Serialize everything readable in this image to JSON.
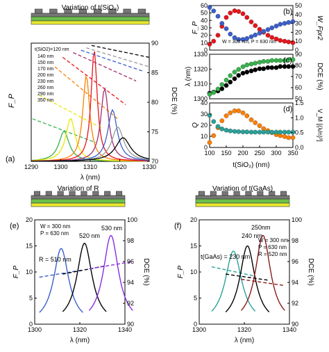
{
  "panels": {
    "a": {
      "label": "(a)",
      "schematic_title": "Variation of t(SiO₂)",
      "xlabel": "λ (nm)",
      "ylabel_left": "F_P",
      "ylabel_right": "DCE (%)",
      "x_ticks": [
        "1290",
        "1300",
        "1310",
        "1320",
        "1330"
      ],
      "y_right_ticks": [
        "70",
        "75",
        "80",
        "85",
        "90"
      ],
      "legend_title": "t(SiO2)=120 nm",
      "legend": [
        {
          "label": "140 nm",
          "color": "#37b24d"
        },
        {
          "label": "150 nm",
          "color": "#e8e800"
        },
        {
          "label": "170 nm",
          "color": "#ff7f00"
        },
        {
          "label": "200 nm",
          "color": "#e8141a"
        },
        {
          "label": "230 nm",
          "color": "#a52a6e"
        },
        {
          "label": "260 nm",
          "color": "#3a5fcd"
        },
        {
          "label": "290 nm",
          "color": "#999999"
        },
        {
          "label": "350 nm",
          "color": "#000000"
        }
      ]
    },
    "b": {
      "label": "(b)",
      "ylabel_left": "F_P",
      "ylabel_right": "W_Fpr2",
      "annotation": "W = 300 nm, P = 630 nm",
      "y_left_ticks": [
        "0",
        "10",
        "20",
        "30",
        "40",
        "50",
        "60"
      ],
      "y_right_ticks": [
        "0",
        "10",
        "20",
        "30",
        "40",
        "50"
      ]
    },
    "c": {
      "label": "(c)",
      "ylabel_left": "λ (nm)",
      "ylabel_right": "DCE (%)",
      "y_left_ticks": [
        "1300",
        "1310",
        "1320",
        "1330"
      ],
      "y_right_ticks": [
        "50",
        "60",
        "70",
        "80",
        "90"
      ]
    },
    "d": {
      "label": "(d)",
      "ylabel_left": "Q",
      "ylabel_right": "V_M [(λ/n)³]",
      "xlabel": "t(SiO₂) (nm)",
      "x_ticks": [
        "100",
        "150",
        "200",
        "250",
        "300",
        "350"
      ],
      "y_left_ticks": [
        "0",
        "10",
        "20",
        "30",
        "40"
      ],
      "y_right_ticks": [
        "0.0",
        "0.5",
        "1.0",
        "1.5"
      ]
    },
    "e": {
      "label": "(e)",
      "schematic_title": "Variation of R",
      "xlabel": "λ (nm)",
      "ylabel_left": "F_P",
      "ylabel_right": "DCE (%)",
      "x_ticks": [
        "1300",
        "1320",
        "1340"
      ],
      "y_left_ticks": [
        "0",
        "5",
        "10",
        "15",
        "20"
      ],
      "y_right_ticks": [
        "90",
        "92",
        "94",
        "96",
        "98",
        "100"
      ],
      "annot_w": "W = 300 nm",
      "annot_p": "P = 630 nm",
      "peak_labels": [
        "R = 510 nm",
        "520 nm",
        "530 nm"
      ]
    },
    "f": {
      "label": "(f)",
      "schematic_title": "Variation of t(GaAs)",
      "xlabel": "λ (nm)",
      "ylabel_left": "F_P",
      "ylabel_right": "DCE (%)",
      "x_ticks": [
        "1300",
        "1320",
        "1340"
      ],
      "y_left_ticks": [
        "0",
        "5",
        "10",
        "15",
        "20"
      ],
      "y_right_ticks": [
        "90",
        "92",
        "94",
        "96",
        "98",
        "100"
      ],
      "annot_w": "W = 300 nm",
      "annot_p": "P = 630 nm",
      "annot_r": "R = 520 nm",
      "peak_labels": [
        "t(GaAs) = 230 nm",
        "240 nm",
        "250nm"
      ]
    }
  },
  "chart_data": [
    {
      "panel": "a",
      "type": "line",
      "xlim": [
        1290,
        1335
      ],
      "ylim": [
        0,
        55
      ],
      "y2lim": [
        68,
        93
      ],
      "series": [
        {
          "name": "140 nm",
          "color": "#37b24d",
          "peak_x": 1302.5,
          "peak_y": 14,
          "width": 2.4,
          "dce_start": 77,
          "dce_end": 72
        },
        {
          "name": "150 nm",
          "color": "#e8e800",
          "peak_x": 1305,
          "peak_y": 20,
          "width": 2.2,
          "dce_start": 82,
          "dce_end": 75
        },
        {
          "name": "170 nm",
          "color": "#ff7f00",
          "peak_x": 1311,
          "peak_y": 40,
          "width": 1.6,
          "dce_start": 88,
          "dce_end": 77
        },
        {
          "name": "200 nm",
          "color": "#e8141a",
          "peak_x": 1314,
          "peak_y": 52,
          "width": 1.4,
          "dce_start": 90,
          "dce_end": 80
        },
        {
          "name": "230 nm",
          "color": "#a52a6e",
          "peak_x": 1318,
          "peak_y": 34,
          "width": 1.8,
          "dce_start": 91,
          "dce_end": 85
        },
        {
          "name": "260 nm",
          "color": "#3a5fcd",
          "peak_x": 1321,
          "peak_y": 24,
          "width": 2.2,
          "dce_start": 91.5,
          "dce_end": 87
        },
        {
          "name": "290 nm",
          "color": "#999999",
          "peak_x": 1323,
          "peak_y": 16,
          "width": 2.8,
          "dce_start": 92,
          "dce_end": 88
        },
        {
          "name": "350 nm",
          "color": "#000000",
          "peak_x": 1325,
          "peak_y": 11,
          "width": 3.5,
          "dce_start": 92.5,
          "dce_end": 90
        }
      ]
    },
    {
      "panel": "b",
      "type": "scatter",
      "x": [
        100,
        112,
        125,
        137,
        150,
        162,
        175,
        187,
        200,
        212,
        225,
        237,
        250,
        262,
        275,
        287,
        300,
        312,
        325,
        337,
        350
      ],
      "series": [
        {
          "name": "F_P",
          "color": "#e8141a",
          "values": [
            8,
            12,
            20,
            32,
            44,
            50,
            53,
            52,
            49,
            44,
            38,
            33,
            28,
            24,
            20,
            17,
            15,
            13,
            12,
            11,
            10
          ]
        },
        {
          "name": "W_Fpr2",
          "color": "#3a5fcd",
          "values": [
            48,
            44,
            38,
            30,
            24,
            18,
            14,
            12,
            12,
            13,
            15,
            17,
            19,
            21,
            23,
            25,
            27,
            29,
            30,
            31,
            32
          ]
        }
      ],
      "ylim": [
        0,
        60
      ],
      "y2lim": [
        0,
        50
      ]
    },
    {
      "panel": "c",
      "type": "scatter",
      "x": [
        100,
        112,
        125,
        137,
        150,
        162,
        175,
        187,
        200,
        212,
        225,
        237,
        250,
        262,
        275,
        287,
        300,
        312,
        325,
        337,
        350
      ],
      "series": [
        {
          "name": "λ",
          "color": "#000000",
          "values": [
            1300,
            1301,
            1302,
            1304,
            1307,
            1310,
            1313,
            1316,
            1318,
            1319,
            1320,
            1321,
            1322,
            1322,
            1323,
            1323,
            1323,
            1324,
            1324,
            1324,
            1324
          ]
        },
        {
          "name": "DCE",
          "color": "#37b24d",
          "values": [
            50,
            52,
            56,
            61,
            66,
            71,
            75,
            78,
            81,
            83,
            84,
            85,
            86,
            87,
            87,
            88,
            88,
            88,
            88,
            89,
            89
          ]
        }
      ],
      "ylim": [
        1295,
        1335
      ],
      "y2lim": [
        45,
        95
      ]
    },
    {
      "panel": "d",
      "type": "scatter",
      "x": [
        100,
        112,
        125,
        137,
        150,
        162,
        175,
        187,
        200,
        212,
        225,
        237,
        250,
        262,
        275,
        287,
        300,
        312,
        325,
        337,
        350
      ],
      "series": [
        {
          "name": "Q",
          "color": "#ff7f00",
          "values": [
            5,
            12,
            20,
            27,
            32,
            35,
            37,
            37,
            35,
            32,
            28,
            25,
            22,
            19,
            17,
            15,
            13,
            12,
            11,
            10,
            10
          ]
        },
        {
          "name": "V_M",
          "color": "#2aa198",
          "values": [
            1.3,
            1.05,
            0.85,
            0.75,
            0.7,
            0.67,
            0.65,
            0.64,
            0.63,
            0.63,
            0.62,
            0.62,
            0.62,
            0.62,
            0.62,
            0.62,
            0.62,
            0.62,
            0.62,
            0.62,
            0.62
          ]
        }
      ],
      "ylim": [
        0,
        45
      ],
      "y2lim": [
        0,
        1.8
      ]
    },
    {
      "panel": "e",
      "type": "line",
      "xlim": [
        1292,
        1350
      ],
      "ylim": [
        0,
        20
      ],
      "y2lim": [
        90,
        100
      ],
      "series": [
        {
          "name": "R = 510 nm",
          "color": "#3a5fcd",
          "peak_x": 1309,
          "peak_y": 14.5,
          "width": 6,
          "dce_start": 94.5,
          "dce_end": 95.2
        },
        {
          "name": "520 nm",
          "color": "#000000",
          "peak_x": 1324,
          "peak_y": 15.5,
          "width": 6,
          "dce_start": 94.8,
          "dce_end": 95.6
        },
        {
          "name": "530 nm",
          "color": "#8a2be2",
          "peak_x": 1341,
          "peak_y": 17,
          "width": 6,
          "dce_start": 95.3,
          "dce_end": 96.0
        }
      ]
    },
    {
      "panel": "f",
      "type": "line",
      "xlim": [
        1292,
        1350
      ],
      "ylim": [
        0,
        20
      ],
      "y2lim": [
        90,
        100
      ],
      "series": [
        {
          "name": "t(GaAs) = 230 nm",
          "color": "#2aa198",
          "peak_x": 1314,
          "peak_y": 14,
          "width": 6.5,
          "dce_start": 95.5,
          "dce_end": 94.6
        },
        {
          "name": "240 nm",
          "color": "#000000",
          "peak_x": 1323,
          "peak_y": 15,
          "width": 6,
          "dce_start": 94.8,
          "dce_end": 94.2
        },
        {
          "name": "250nm",
          "color": "#8b1a1a",
          "peak_x": 1333,
          "peak_y": 17,
          "width": 6,
          "dce_start": 94.3,
          "dce_end": 93.7
        }
      ]
    }
  ]
}
